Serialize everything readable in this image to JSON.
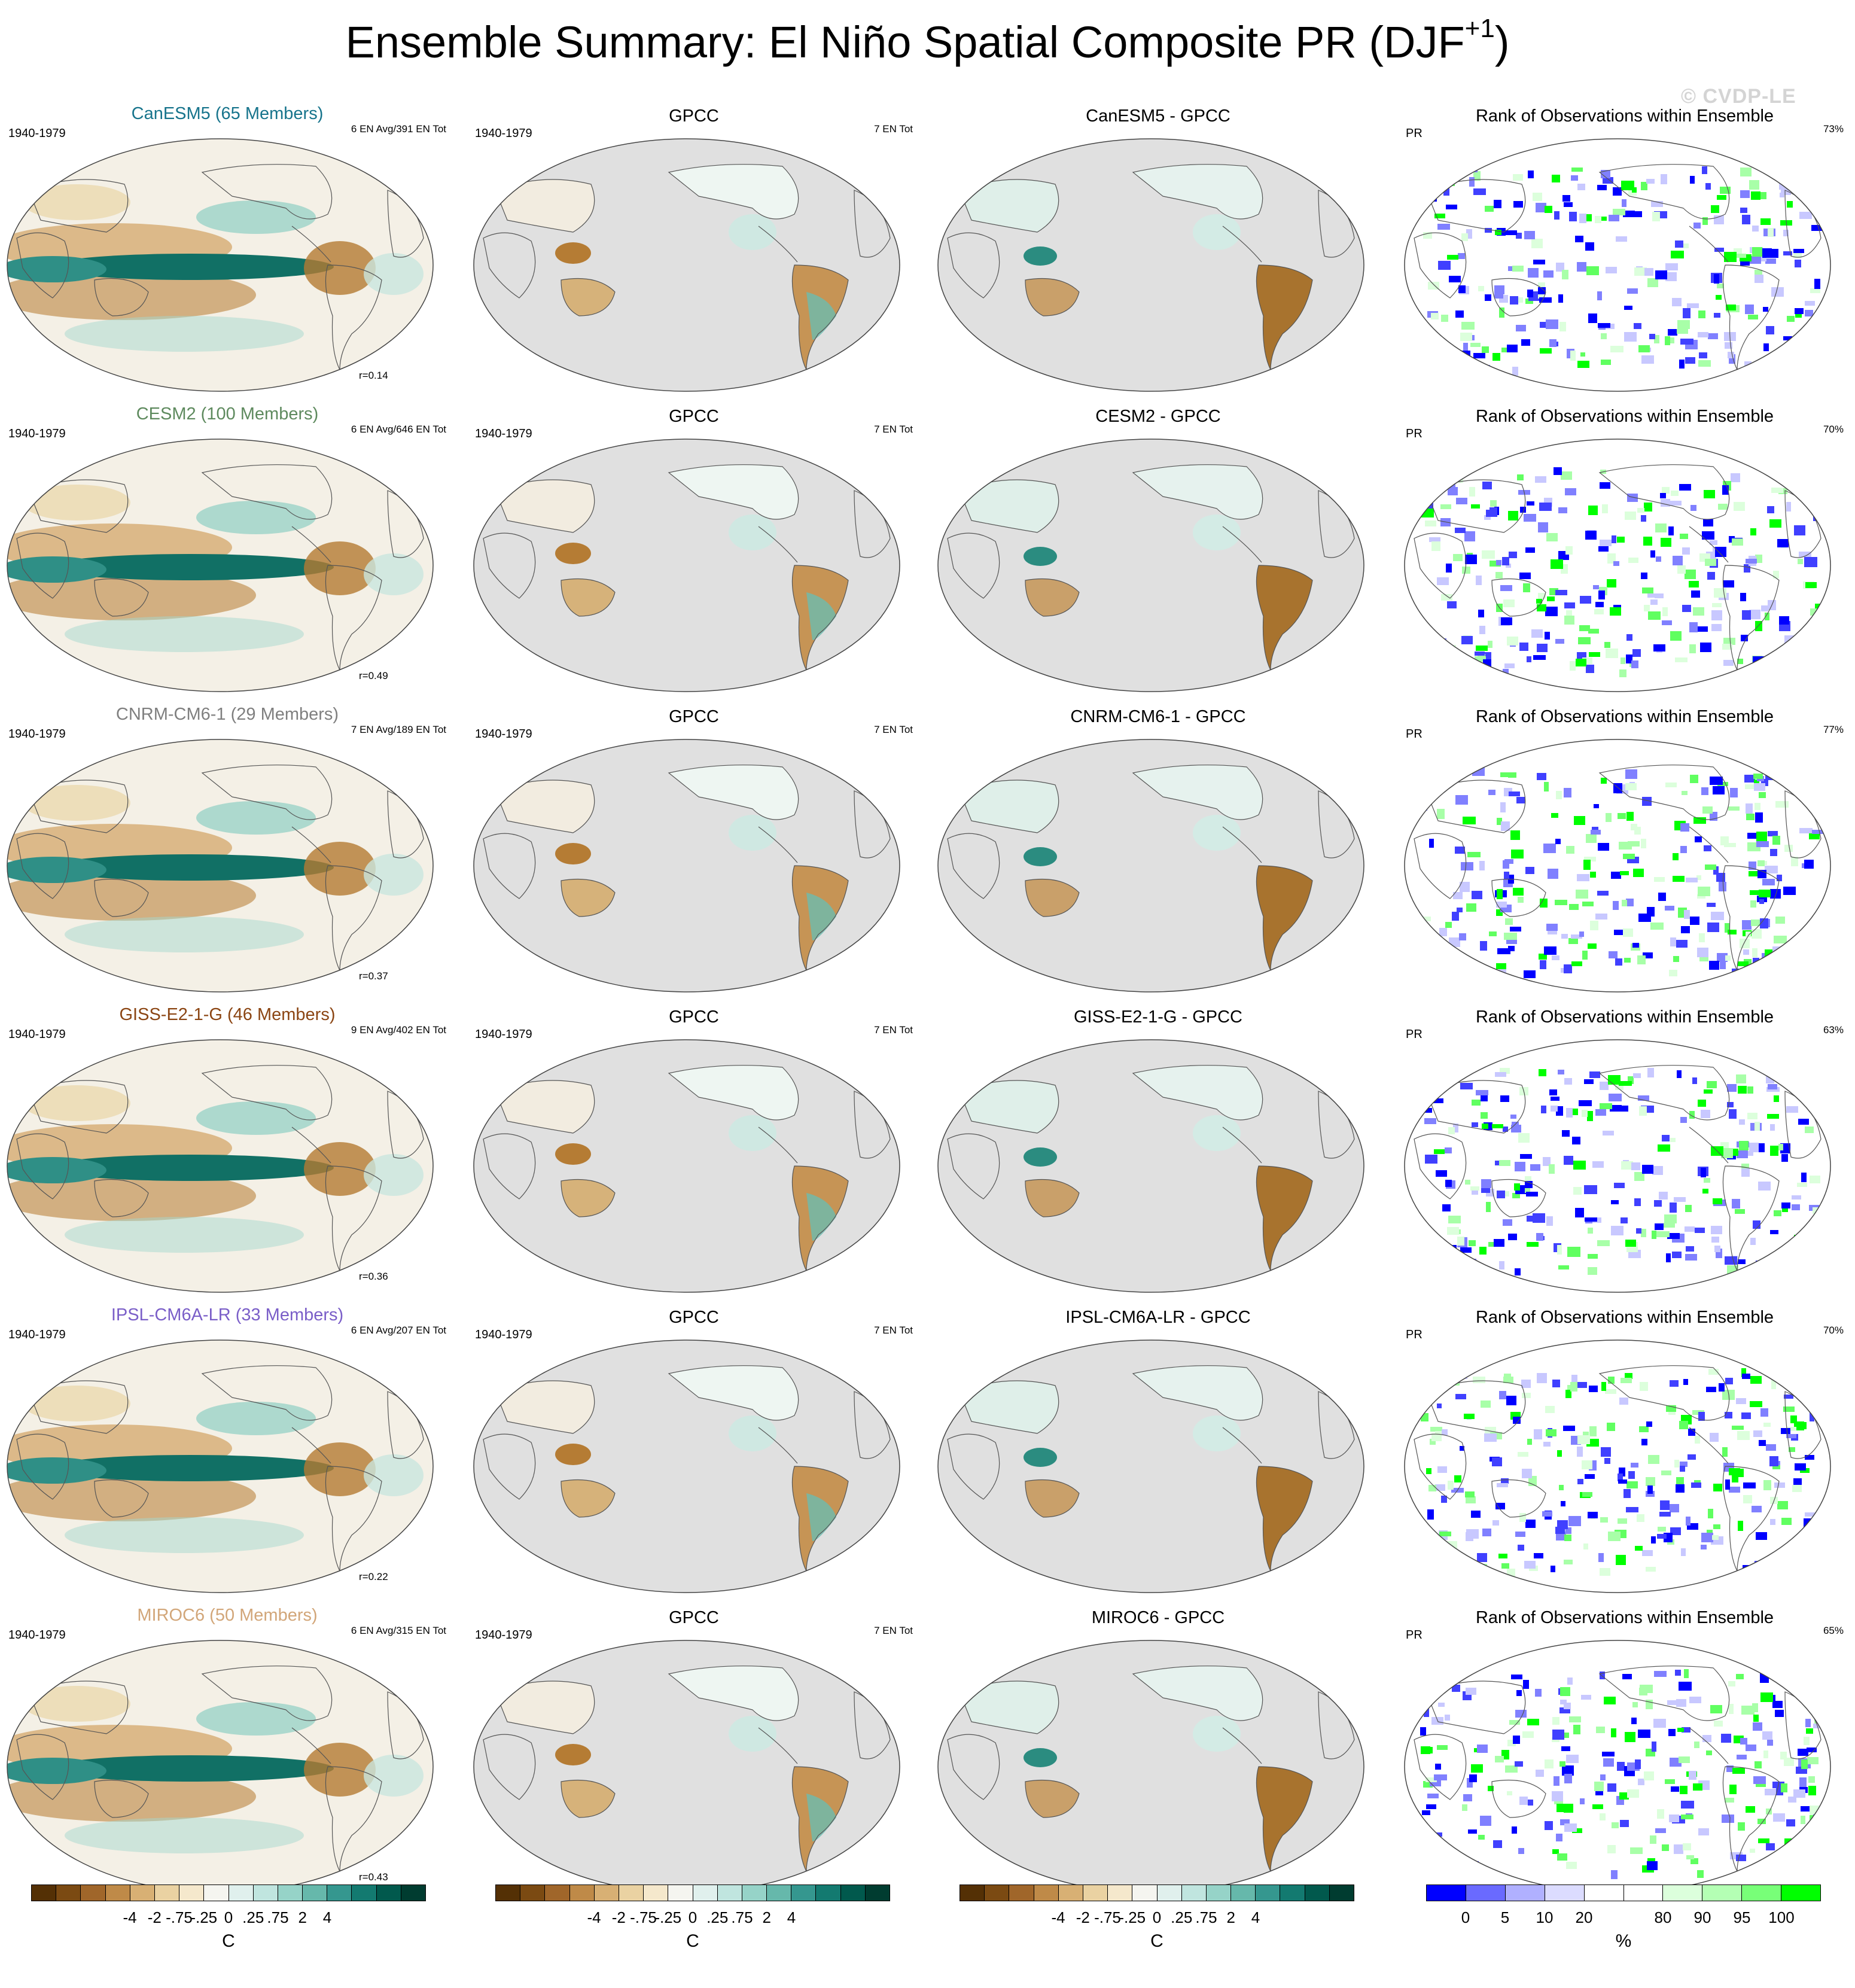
{
  "title_main": "Ensemble Summary: El Niño Spatial Composite PR (DJF",
  "title_sup": "+1",
  "title_close": ")",
  "credit": "© CVDP-LE",
  "rows": [
    {
      "model_title": "CanESM5 (65 Members)",
      "model_color": "#17748c",
      "period": "1940-1979",
      "en_info": "6 EN Avg/391 EN Tot",
      "r_value": "r=0.14",
      "obs_title": "GPCC",
      "obs_period": "1940-1979",
      "obs_info": "7 EN Tot",
      "diff_title": "CanESM5 - GPCC",
      "rank_title": "Rank of Observations within Ensemble",
      "rank_var": "PR",
      "rank_pct": "73%"
    },
    {
      "model_title": "CESM2 (100 Members)",
      "model_color": "#5e8a5e",
      "period": "1940-1979",
      "en_info": "6 EN Avg/646 EN Tot",
      "r_value": "r=0.49",
      "obs_title": "GPCC",
      "obs_period": "1940-1979",
      "obs_info": "7 EN Tot",
      "diff_title": "CESM2 - GPCC",
      "rank_title": "Rank of Observations within Ensemble",
      "rank_var": "PR",
      "rank_pct": "70%"
    },
    {
      "model_title": "CNRM-CM6-1 (29 Members)",
      "model_color": "#7f7f7f",
      "period": "1940-1979",
      "en_info": "7 EN Avg/189 EN Tot",
      "r_value": "r=0.37",
      "obs_title": "GPCC",
      "obs_period": "1940-1979",
      "obs_info": "7 EN Tot",
      "diff_title": "CNRM-CM6-1 - GPCC",
      "rank_title": "Rank of Observations within Ensemble",
      "rank_var": "PR",
      "rank_pct": "77%"
    },
    {
      "model_title": "GISS-E2-1-G (46 Members)",
      "model_color": "#8b4513",
      "period": "1940-1979",
      "en_info": "9 EN Avg/402 EN Tot",
      "r_value": "r=0.36",
      "obs_title": "GPCC",
      "obs_period": "1940-1979",
      "obs_info": "7 EN Tot",
      "diff_title": "GISS-E2-1-G - GPCC",
      "rank_title": "Rank of Observations within Ensemble",
      "rank_var": "PR",
      "rank_pct": "63%"
    },
    {
      "model_title": "IPSL-CM6A-LR (33 Members)",
      "model_color": "#7a5ec8",
      "period": "1940-1979",
      "en_info": "6 EN Avg/207 EN Tot",
      "r_value": "r=0.22",
      "obs_title": "GPCC",
      "obs_period": "1940-1979",
      "obs_info": "7 EN Tot",
      "diff_title": "IPSL-CM6A-LR - GPCC",
      "rank_title": "Rank of Observations within Ensemble",
      "rank_var": "PR",
      "rank_pct": "70%"
    },
    {
      "model_title": "MIROC6 (50 Members)",
      "model_color": "#d2a679",
      "period": "1940-1979",
      "en_info": "6 EN Avg/315 EN Tot",
      "r_value": "r=0.43",
      "obs_title": "GPCC",
      "obs_period": "1940-1979",
      "obs_info": "7 EN Tot",
      "diff_title": "MIROC6 - GPCC",
      "rank_title": "Rank of Observations within Ensemble",
      "rank_var": "PR",
      "rank_pct": "65%"
    }
  ],
  "colorbar_brbg": {
    "colors": [
      "#543005",
      "#7b4a12",
      "#a0662a",
      "#bf8a48",
      "#d8b074",
      "#ead2a2",
      "#f5e8cc",
      "#f5f5f0",
      "#e0f0ed",
      "#c0e5df",
      "#96d3c8",
      "#66b8ab",
      "#35978f",
      "#137a70",
      "#01594d",
      "#003c30"
    ],
    "ticks": [
      "-4",
      "-2",
      "-.75",
      "-.25",
      "0",
      ".25",
      ".75",
      "2",
      "4"
    ],
    "unit": "C"
  },
  "colorbar_rank": {
    "colors": [
      "#0000ff",
      "#6a6aff",
      "#b0b0ff",
      "#dcdcff",
      "#ffffff",
      "#ffffff",
      "#dcffdc",
      "#b4ffb4",
      "#78ff78",
      "#00ff00"
    ],
    "ticks": [
      "0",
      "5",
      "10",
      "20",
      "80",
      "90",
      "95",
      "100"
    ],
    "unit": "%"
  }
}
